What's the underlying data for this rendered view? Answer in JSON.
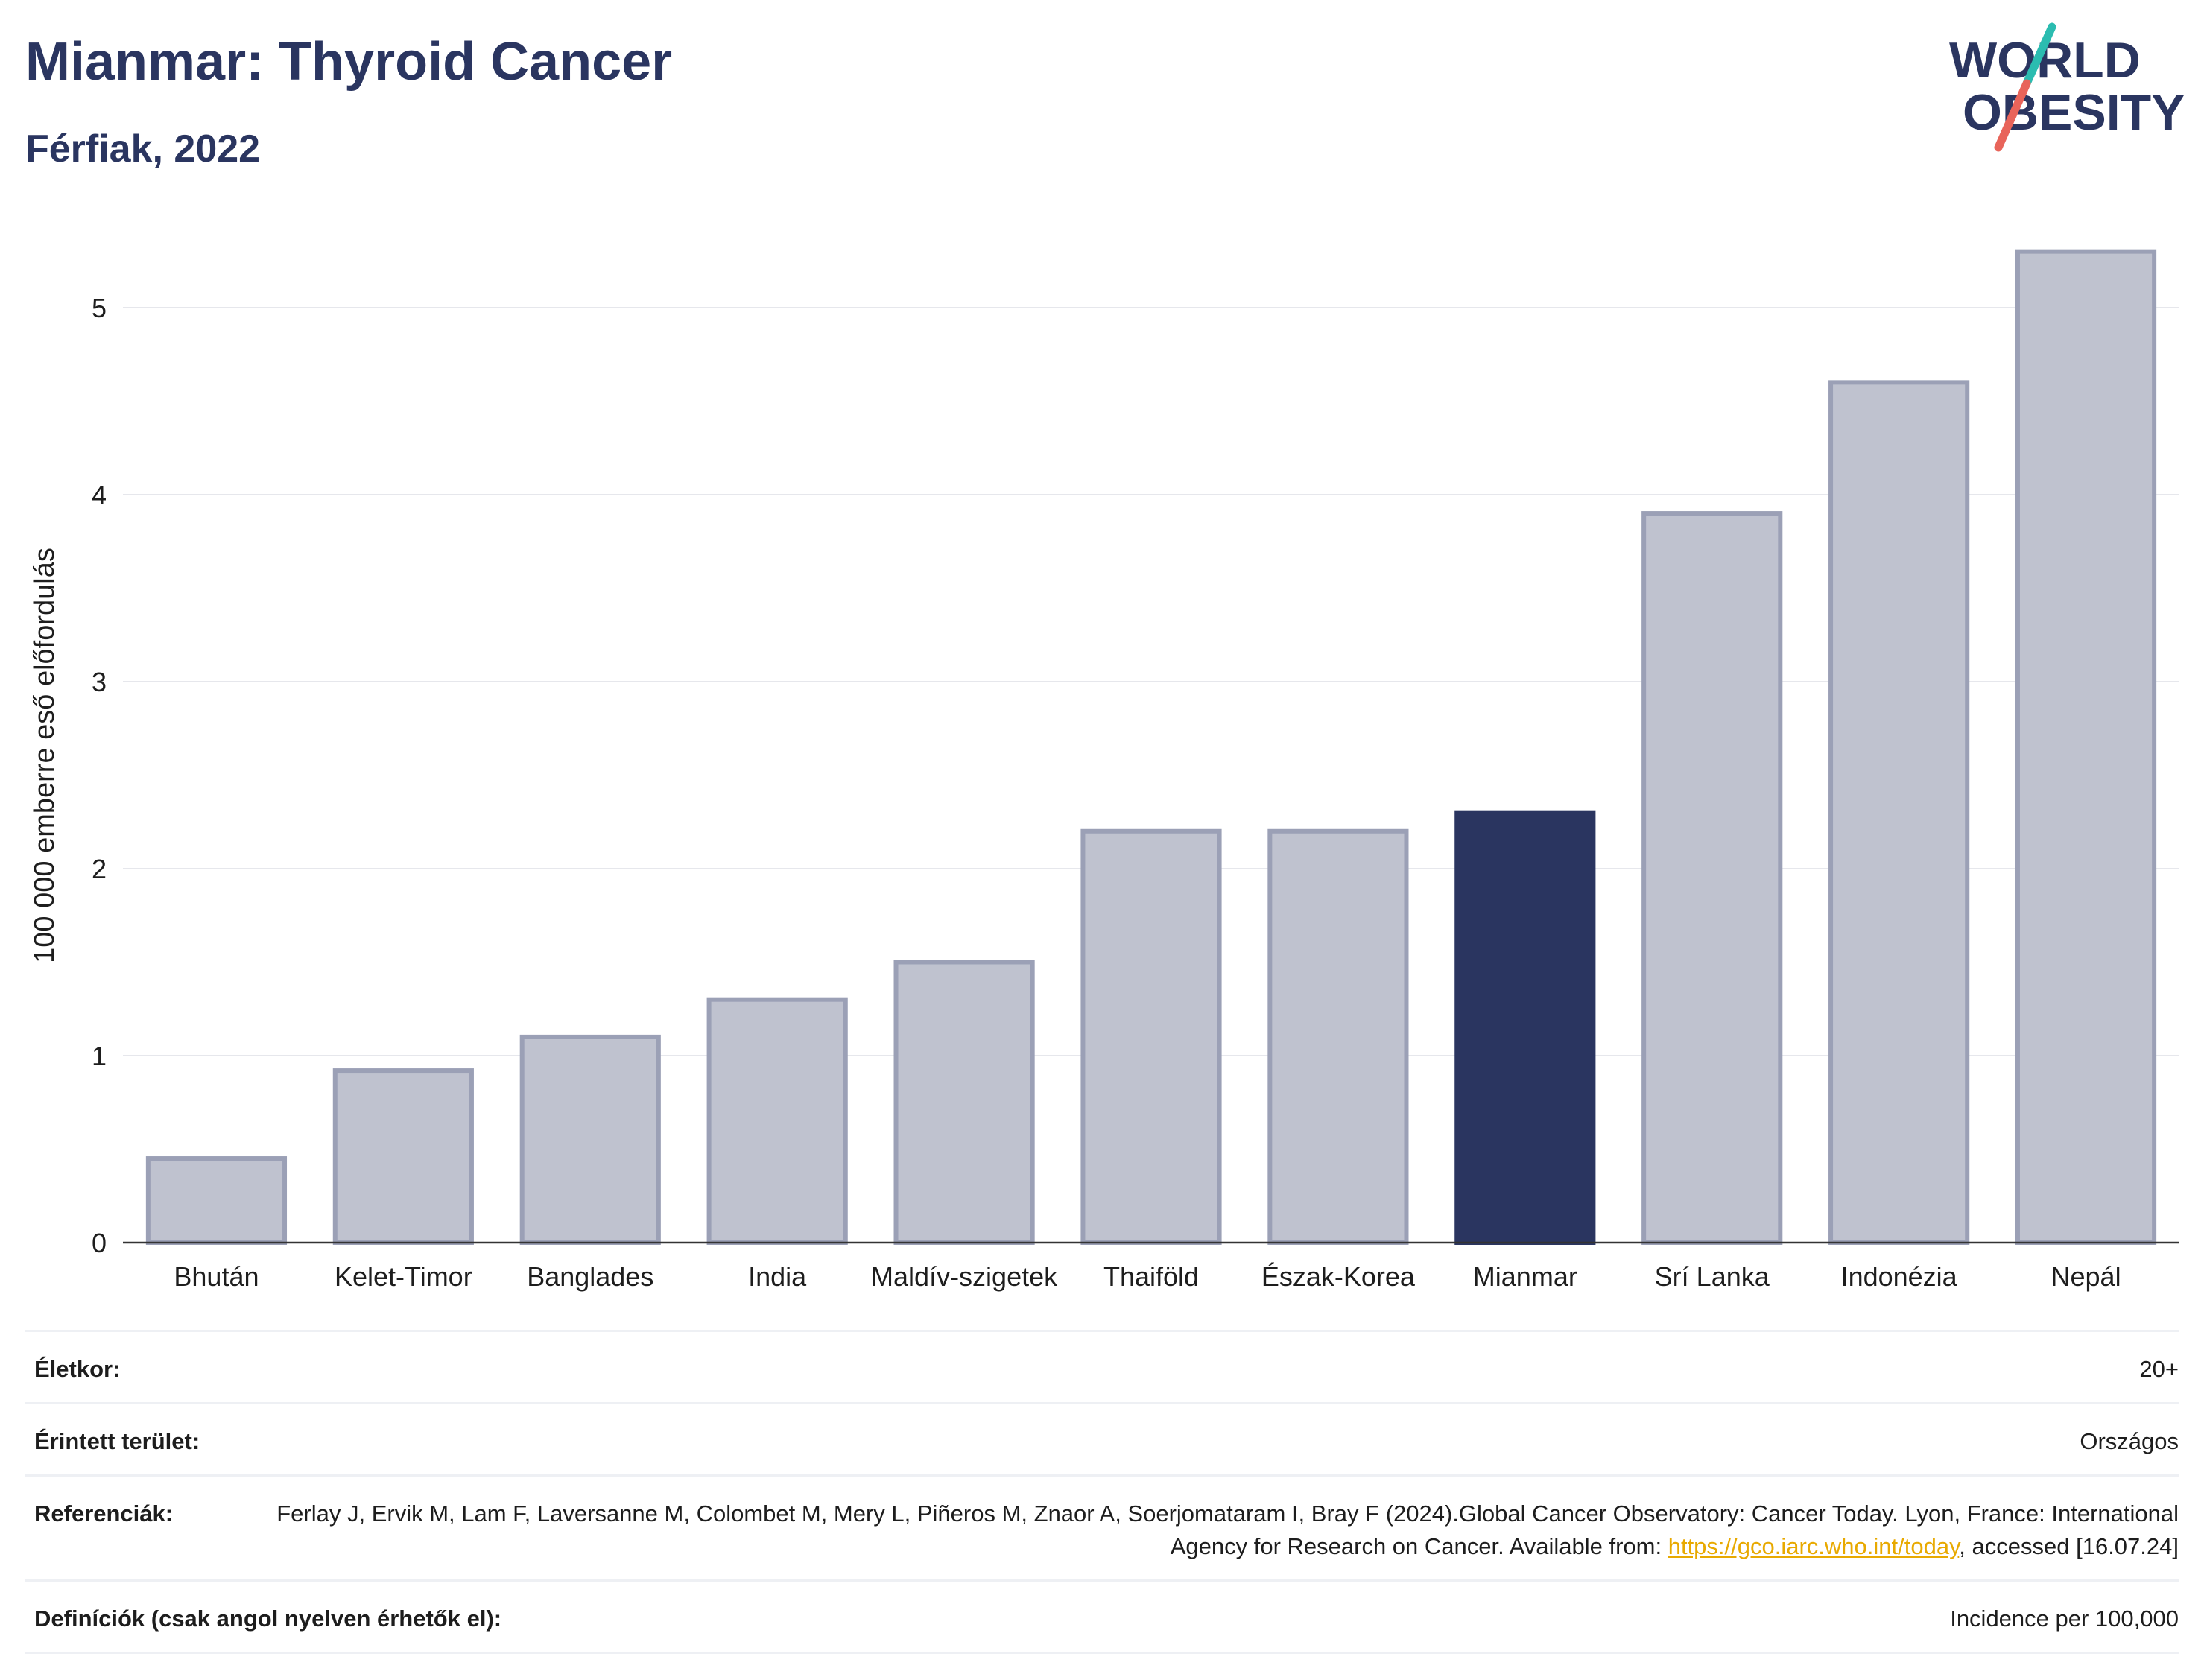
{
  "header": {
    "title": "Mianmar: Thyroid Cancer",
    "subtitle": "Férfiak, 2022"
  },
  "logo": {
    "line1": "WORLD",
    "line2": "OBESITY",
    "colors": {
      "text": "#2a3560",
      "slash_top": "#2bbcb0",
      "slash_bottom": "#e8645a"
    }
  },
  "chart_data": {
    "type": "bar",
    "categories": [
      "Bhután",
      "Kelet-Timor",
      "Banglades",
      "India",
      "Maldív-szigetek",
      "Thaiföld",
      "Észak-Korea",
      "Mianmar",
      "Srí Lanka",
      "Indonézia",
      "Nepál"
    ],
    "values": [
      0.45,
      0.92,
      1.1,
      1.3,
      1.5,
      2.2,
      2.2,
      2.3,
      3.9,
      4.6,
      5.3
    ],
    "highlight": "Mianmar",
    "ylabel": "100 000 emberre eső előfordulás",
    "xlabel": "",
    "ylim": [
      0,
      5.45
    ],
    "yticks": [
      0,
      1,
      2,
      3,
      4,
      5
    ],
    "grid": true,
    "colors": {
      "bar": "#bfc2cf",
      "bar_border": "#9ba0b6",
      "highlight": "#2a3560",
      "grid": "#e6e7ec",
      "axis": "#333333"
    }
  },
  "meta": {
    "age_label": "Életkor:",
    "age_value": "20+",
    "area_label": "Érintett terület:",
    "area_value": "Országos",
    "ref_label": "Referenciák:",
    "ref_text1": "Ferlay J, Ervik M, Lam F, Laversanne M, Colombet M, Mery L, Piñeros M, Znaor A, Soerjomataram I, Bray F (2024).Global Cancer Observatory: Cancer Today. Lyon, France: International Agency for Research on Cancer. Available from: ",
    "ref_link": "https://gco.iarc.who.int/today",
    "ref_text2": ", accessed [16.07.24]",
    "def_label": "Definíciók (csak angol nyelven érhetők el):",
    "def_value": "Incidence per 100,000"
  }
}
